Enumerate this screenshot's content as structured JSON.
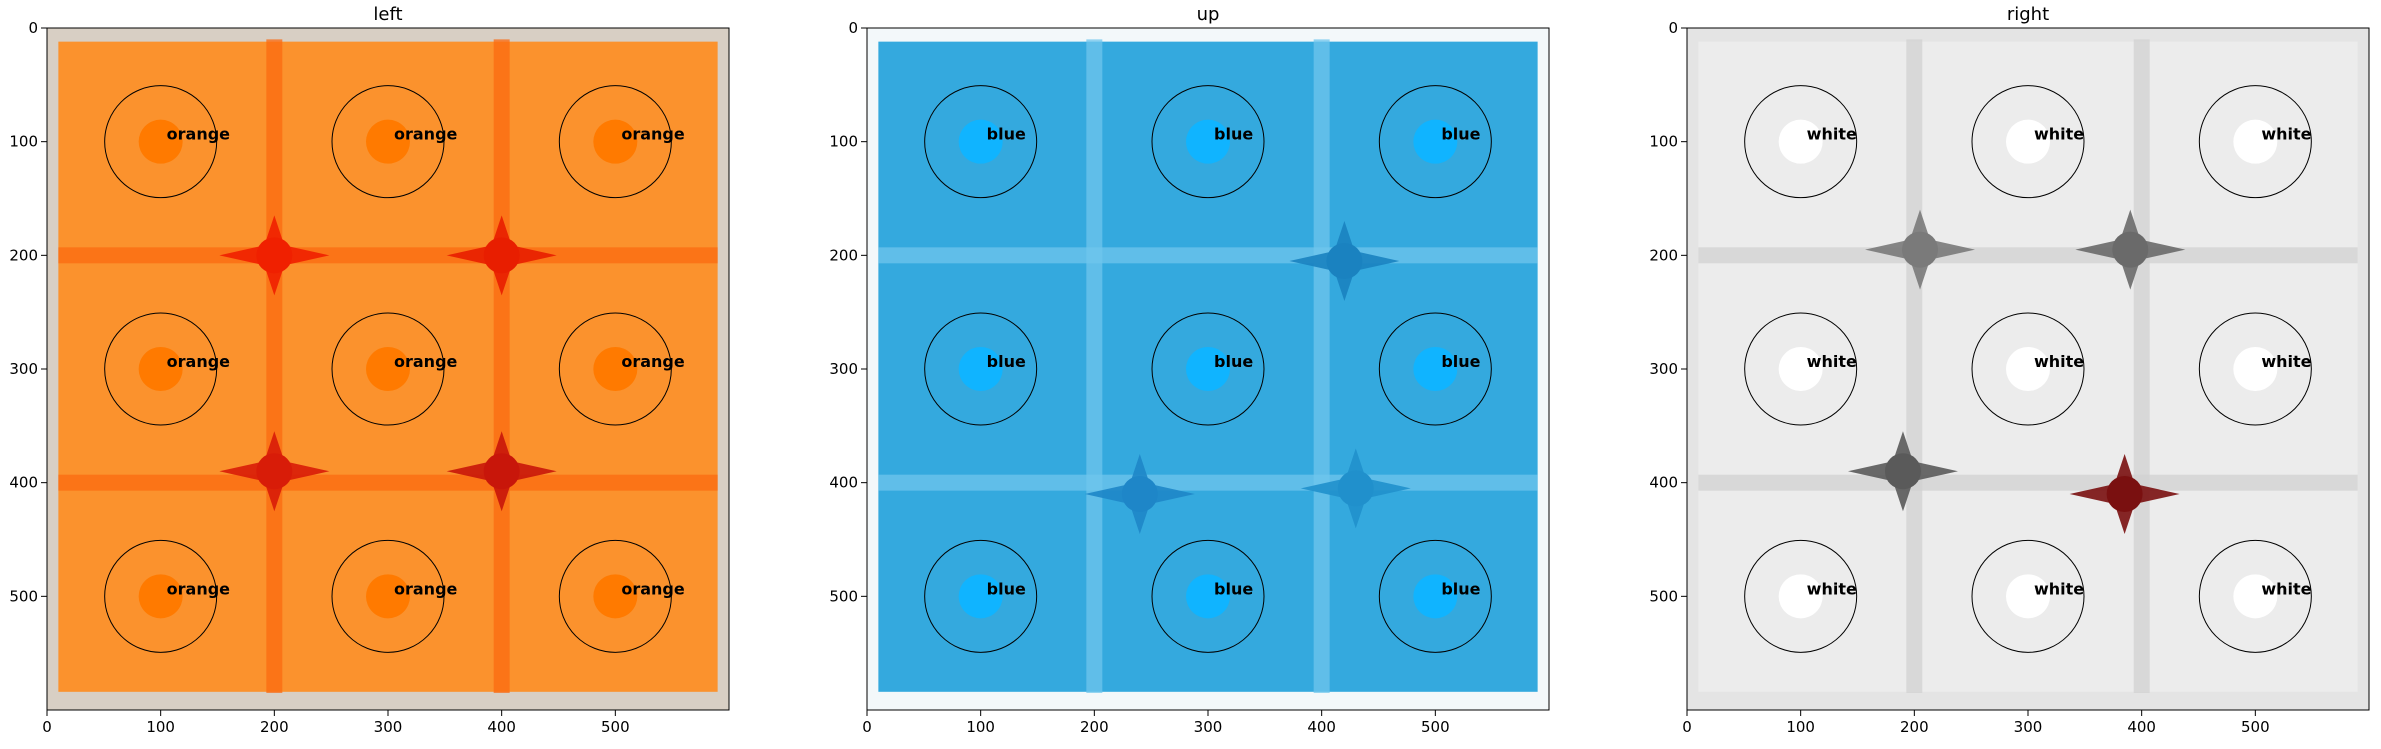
{
  "chart_data": [
    {
      "type": "heatmap",
      "title": "left",
      "face_color": "orange",
      "fill": "#fb922d",
      "edge": "#d8cfc4",
      "seam": "#fb6a10",
      "dot": "#ff7a00",
      "blobs": [
        {
          "x": 200,
          "y": 200,
          "color": "#f02000"
        },
        {
          "x": 400,
          "y": 200,
          "color": "#e81e00"
        },
        {
          "x": 200,
          "y": 390,
          "color": "#d81c08"
        },
        {
          "x": 400,
          "y": 390,
          "color": "#c8160a"
        }
      ],
      "xticks": [
        0,
        100,
        200,
        300,
        400,
        500
      ],
      "yticks": [
        0,
        100,
        200,
        300,
        400,
        500
      ],
      "xlim": [
        0,
        600
      ],
      "ylim": [
        600,
        0
      ],
      "cells": [
        {
          "x": 100,
          "y": 100,
          "label": "orange"
        },
        {
          "x": 300,
          "y": 100,
          "label": "orange"
        },
        {
          "x": 500,
          "y": 100,
          "label": "orange"
        },
        {
          "x": 100,
          "y": 300,
          "label": "orange"
        },
        {
          "x": 300,
          "y": 300,
          "label": "orange"
        },
        {
          "x": 500,
          "y": 300,
          "label": "orange"
        },
        {
          "x": 100,
          "y": 500,
          "label": "orange"
        },
        {
          "x": 300,
          "y": 500,
          "label": "orange"
        },
        {
          "x": 500,
          "y": 500,
          "label": "orange"
        }
      ]
    },
    {
      "type": "heatmap",
      "title": "up",
      "face_color": "blue",
      "fill": "#34a9de",
      "edge": "#f3f8fa",
      "seam": "#6fc5ec",
      "dot": "#10b4ff",
      "blobs": [
        {
          "x": 420,
          "y": 205,
          "color": "#1a82c0"
        },
        {
          "x": 240,
          "y": 410,
          "color": "#1e86c8"
        },
        {
          "x": 430,
          "y": 405,
          "color": "#2090cc"
        }
      ],
      "xticks": [
        0,
        100,
        200,
        300,
        400,
        500
      ],
      "yticks": [
        0,
        100,
        200,
        300,
        400,
        500
      ],
      "xlim": [
        0,
        600
      ],
      "ylim": [
        600,
        0
      ],
      "cells": [
        {
          "x": 100,
          "y": 100,
          "label": "blue"
        },
        {
          "x": 300,
          "y": 100,
          "label": "blue"
        },
        {
          "x": 500,
          "y": 100,
          "label": "blue"
        },
        {
          "x": 100,
          "y": 300,
          "label": "blue"
        },
        {
          "x": 300,
          "y": 300,
          "label": "blue"
        },
        {
          "x": 500,
          "y": 300,
          "label": "blue"
        },
        {
          "x": 100,
          "y": 500,
          "label": "blue"
        },
        {
          "x": 300,
          "y": 500,
          "label": "blue"
        },
        {
          "x": 500,
          "y": 500,
          "label": "blue"
        }
      ]
    },
    {
      "type": "heatmap",
      "title": "right",
      "face_color": "white",
      "fill": "#ececec",
      "edge": "#e4e4e4",
      "seam": "#d2d2d2",
      "dot": "#ffffff",
      "blobs": [
        {
          "x": 205,
          "y": 195,
          "color": "#7a7a7a"
        },
        {
          "x": 390,
          "y": 195,
          "color": "#6a6a6a"
        },
        {
          "x": 190,
          "y": 390,
          "color": "#5a5a5a"
        },
        {
          "x": 385,
          "y": 410,
          "color": "#7a1010"
        }
      ],
      "xticks": [
        0,
        100,
        200,
        300,
        400,
        500
      ],
      "yticks": [
        0,
        100,
        200,
        300,
        400,
        500
      ],
      "xlim": [
        0,
        600
      ],
      "ylim": [
        600,
        0
      ],
      "cells": [
        {
          "x": 100,
          "y": 100,
          "label": "white"
        },
        {
          "x": 300,
          "y": 100,
          "label": "white"
        },
        {
          "x": 500,
          "y": 100,
          "label": "white"
        },
        {
          "x": 100,
          "y": 300,
          "label": "white"
        },
        {
          "x": 300,
          "y": 300,
          "label": "white"
        },
        {
          "x": 500,
          "y": 300,
          "label": "white"
        },
        {
          "x": 100,
          "y": 500,
          "label": "white"
        },
        {
          "x": 300,
          "y": 500,
          "label": "white"
        },
        {
          "x": 500,
          "y": 500,
          "label": "white"
        }
      ]
    }
  ]
}
